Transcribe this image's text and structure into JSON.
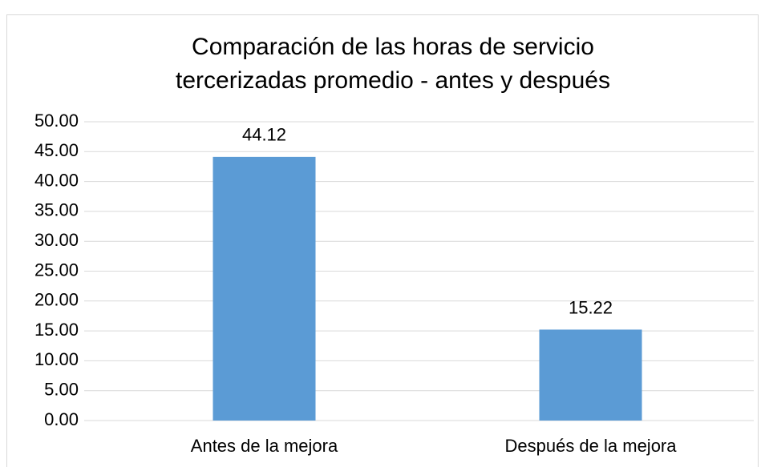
{
  "chart_data": {
    "type": "bar",
    "title": [
      "Comparación de las horas de servicio",
      "tercerizadas promedio - antes y después"
    ],
    "categories": [
      "Antes de la mejora",
      "Después de la mejora"
    ],
    "values": [
      44.12,
      15.22
    ],
    "color": "#5b9bd5",
    "ylim": [
      0,
      50
    ],
    "yticks": [
      {
        "value": 0,
        "label": "0.00"
      },
      {
        "value": 5,
        "label": "5.00"
      },
      {
        "value": 10,
        "label": "10.00"
      },
      {
        "value": 15,
        "label": "15.00"
      },
      {
        "value": 20,
        "label": "20.00"
      },
      {
        "value": 25,
        "label": "25.00"
      },
      {
        "value": 30,
        "label": "30.00"
      },
      {
        "value": 35,
        "label": "35.00"
      },
      {
        "value": 40,
        "label": "40.00"
      },
      {
        "value": 45,
        "label": "45.00"
      },
      {
        "value": 50,
        "label": "50.00"
      }
    ],
    "grid": true
  }
}
